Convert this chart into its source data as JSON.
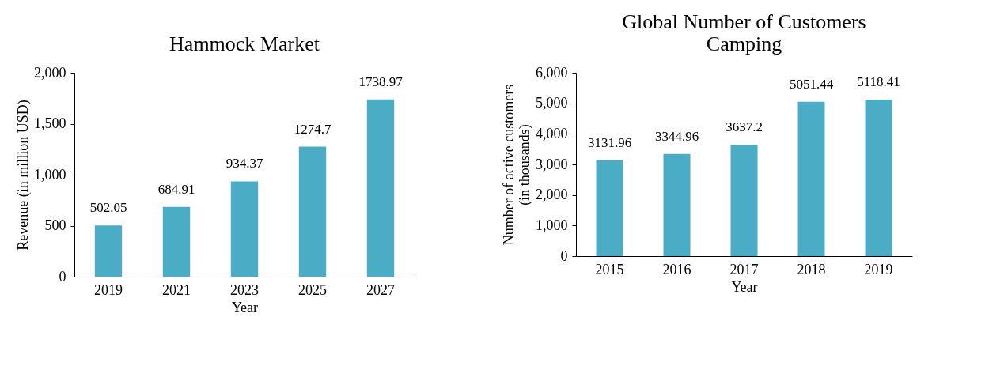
{
  "chart_data": [
    {
      "type": "bar",
      "title": "Hammock Market",
      "xlabel": "Year",
      "ylabel": "Revenue (in million USD)",
      "categories": [
        "2019",
        "2021",
        "2023",
        "2025",
        "2027"
      ],
      "values": [
        502.05,
        684.91,
        934.37,
        1274.7,
        1738.97
      ],
      "color": "#4bacc6",
      "ylim": [
        0,
        2000
      ],
      "yticks": [
        {
          "value": 0,
          "label": "0"
        },
        {
          "value": 500,
          "label": "500"
        },
        {
          "value": 1000,
          "label": "1,000"
        },
        {
          "value": 1500,
          "label": "1,500"
        },
        {
          "value": 2000,
          "label": "2,000"
        }
      ],
      "data_labels": true,
      "grid": false
    },
    {
      "type": "bar",
      "title": "Global Number of Customers Camping",
      "xlabel": "Year",
      "ylabel": "Number of active customers (in thousands)",
      "categories": [
        "2015",
        "2016",
        "2017",
        "2018",
        "2019"
      ],
      "values": [
        3131.96,
        3344.96,
        3637.2,
        5051.44,
        5118.41
      ],
      "color": "#4bacc6",
      "ylim": [
        0,
        6000
      ],
      "yticks": [
        {
          "value": 0,
          "label": "0"
        },
        {
          "value": 1000,
          "label": "1,000"
        },
        {
          "value": 2000,
          "label": "2,000"
        },
        {
          "value": 3000,
          "label": "3,000"
        },
        {
          "value": 4000,
          "label": "4,000"
        },
        {
          "value": 5000,
          "label": "5,000"
        },
        {
          "value": 6000,
          "label": "6,000"
        }
      ],
      "data_labels": true,
      "grid": false
    }
  ]
}
